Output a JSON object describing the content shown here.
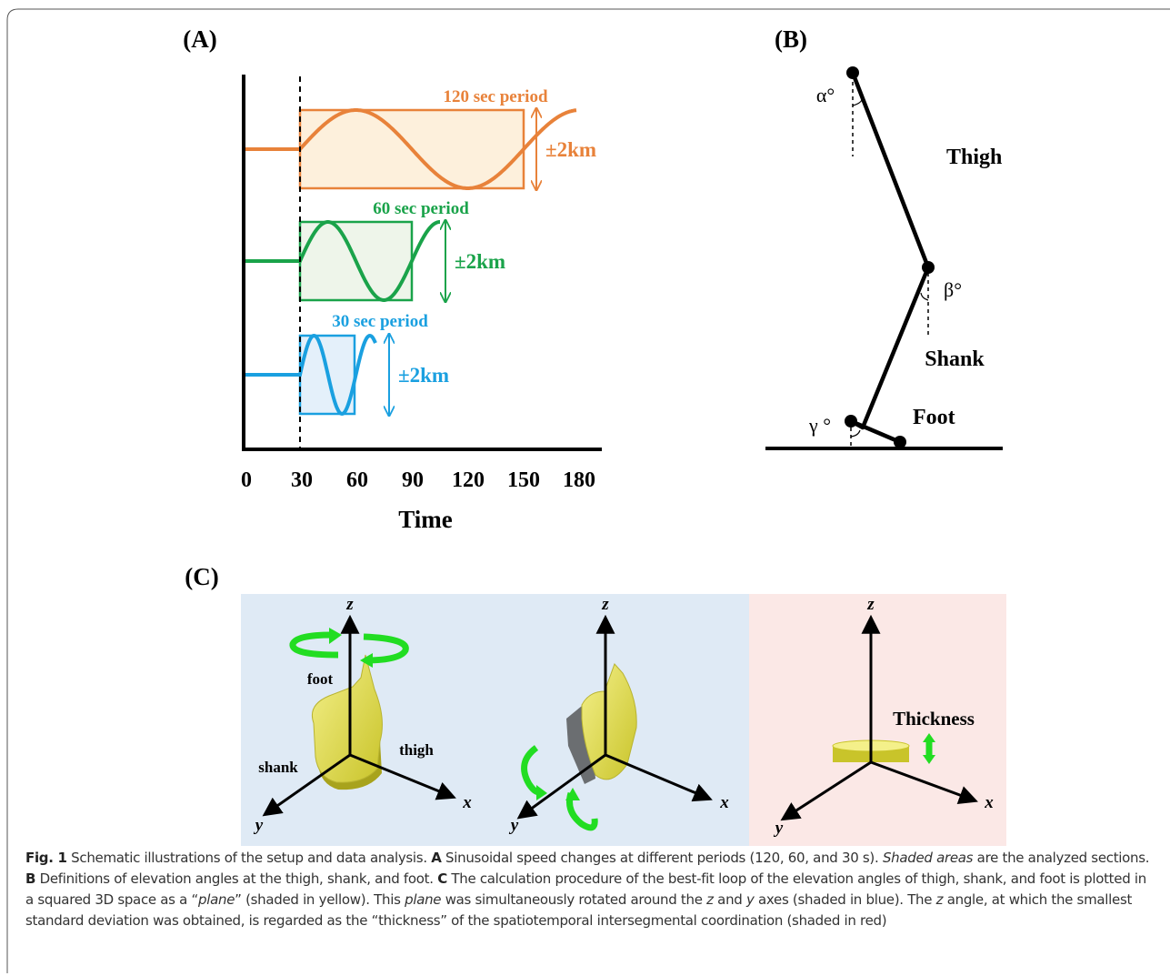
{
  "panel_a": {
    "label": "(A)",
    "xticks": [
      "0",
      "30",
      "60",
      "90",
      "120",
      "150",
      "180"
    ],
    "xlabel": "Time",
    "waves": [
      {
        "title": "120 sec period",
        "amplitude": "±2km"
      },
      {
        "title": "60 sec period",
        "amplitude": "±2km"
      },
      {
        "title": "30 sec period",
        "amplitude": "±2km"
      }
    ]
  },
  "panel_b": {
    "label": "(B)",
    "thigh": "Thigh",
    "shank": "Shank",
    "foot": "Foot",
    "alpha": "α°",
    "beta": "β°",
    "gamma": "γ °"
  },
  "panel_c": {
    "label": "(C)",
    "axes": [
      {
        "z": "z",
        "x": "x",
        "y": "y"
      },
      {
        "z": "z",
        "x": "x",
        "y": "y"
      },
      {
        "z": "z",
        "x": "x",
        "y": "y"
      }
    ],
    "foot": "foot",
    "shank": "shank",
    "thigh": "thigh",
    "thickness": "Thickness"
  },
  "caption": [
    "Fig. 1",
    "  Schematic illustrations of the setup and data analysis. ",
    "A",
    " Sinusoidal speed changes at different periods (120, 60, and 30 s). ",
    "Shaded areas",
    " are the analyzed sections. ",
    "B",
    " Definitions of elevation angles at the thigh, shank, and foot. ",
    "C",
    " The calculation procedure of the best-fit loop of the elevation angles of thigh, shank, and foot is plotted in a squared 3D space as a “",
    "plane",
    "” (shaded in yellow). This ",
    "plane",
    " was simultaneously rotated around the ",
    "z",
    " and ",
    "y",
    " axes (shaded in blue). The ",
    "z",
    " angle, at which the smallest standard deviation was obtained, is regarded as the “thickness” of the spatiotemporal intersegmental coordination (shaded in red)"
  ]
}
